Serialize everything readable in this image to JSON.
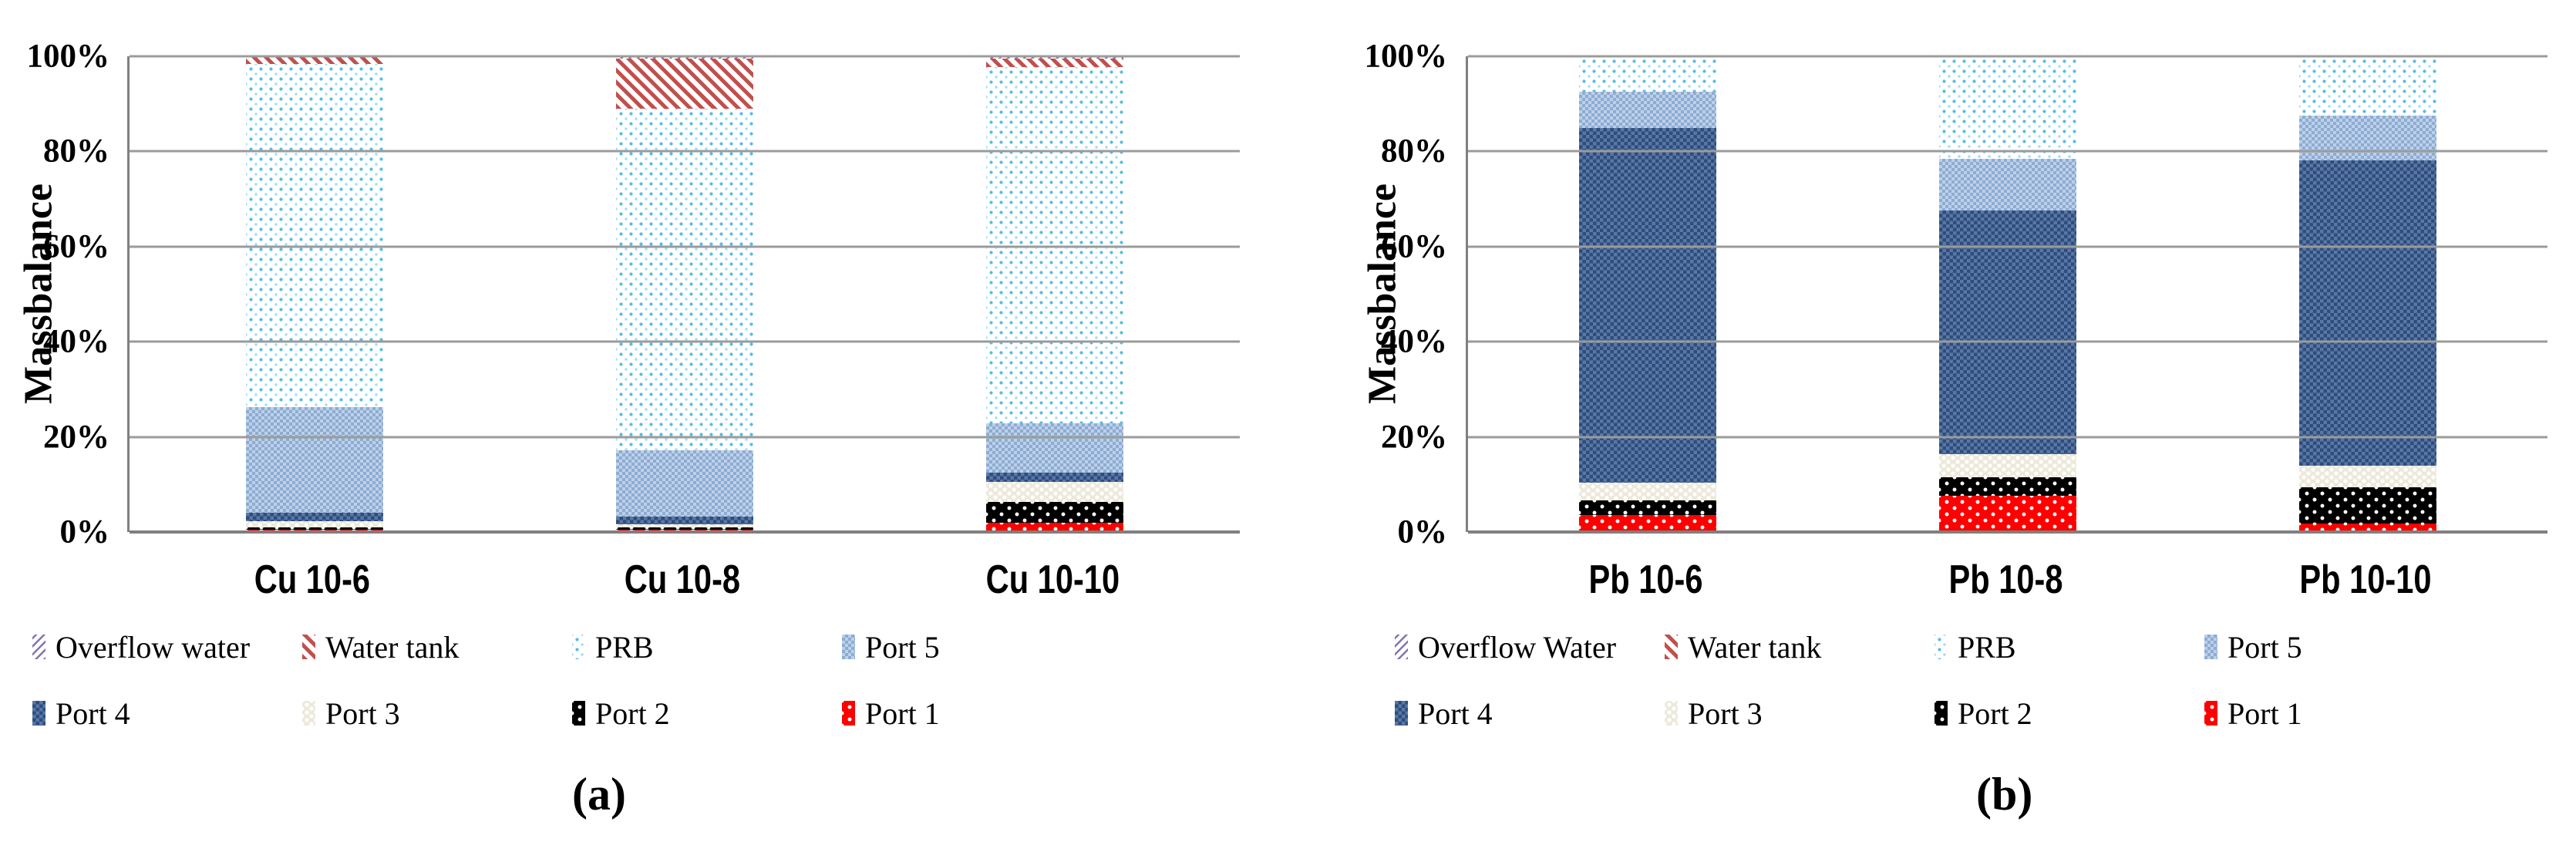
{
  "figure_type": "two-panel 100% stacked bar chart",
  "panels": [
    {
      "caption": "(a)",
      "ylabel": "Massbalance",
      "legend_rows": [
        [
          "Overflow water",
          "Water tank",
          "PRB",
          "Port 5"
        ],
        [
          "Port 4",
          "Port 3",
          "Port 2",
          "Port 1"
        ]
      ]
    },
    {
      "caption": "(b)",
      "ylabel": "Massbalance",
      "legend_rows": [
        [
          "Overflow Water",
          "Water tank",
          "PRB",
          "Port 5"
        ],
        [
          "Port 4",
          "Port 3",
          "Port 2",
          "Port 1"
        ]
      ]
    }
  ],
  "chart_data": [
    {
      "type": "bar",
      "stacked": true,
      "units": "percent",
      "title": "(a)",
      "ylabel": "Massbalance",
      "ylim": [
        0,
        100
      ],
      "ytick_labels": [
        "100%",
        "80%",
        "60%",
        "40%",
        "20%",
        "0%"
      ],
      "grid": true,
      "legend_position": "bottom",
      "categories": [
        "Cu 10-6",
        "Cu 10-8",
        "Cu 10-10"
      ],
      "series": [
        {
          "name": "Port 1",
          "values": [
            0.5,
            0.5,
            1.9
          ]
        },
        {
          "name": "Port 2",
          "values": [
            0.5,
            0.5,
            4.4
          ]
        },
        {
          "name": "Port 3",
          "values": [
            1.3,
            0.7,
            4.3
          ]
        },
        {
          "name": "Port 4",
          "values": [
            1.7,
            1.6,
            1.9
          ]
        },
        {
          "name": "Port 5",
          "values": [
            22.3,
            13.9,
            10.4
          ]
        },
        {
          "name": "PRB",
          "values": [
            72.1,
            71.8,
            74.8
          ]
        },
        {
          "name": "Water tank",
          "values": [
            1.6,
            10.5,
            1.8
          ]
        },
        {
          "name": "Overflow water",
          "values": [
            0.0,
            0.5,
            0.5
          ]
        }
      ]
    },
    {
      "type": "bar",
      "stacked": true,
      "units": "percent",
      "title": "(b)",
      "ylabel": "Massbalance",
      "ylim": [
        0,
        100
      ],
      "ytick_labels": [
        "100%",
        "80%",
        "60%",
        "40%",
        "20%",
        "0%"
      ],
      "grid": true,
      "legend_position": "bottom",
      "categories": [
        "Pb 10-6",
        "Pb 10-8",
        "Pb 10-10"
      ],
      "series": [
        {
          "name": "Port 1",
          "values": [
            3.6,
            7.6,
            1.8
          ]
        },
        {
          "name": "Port 2",
          "values": [
            3.1,
            3.9,
            7.6
          ]
        },
        {
          "name": "Port 3",
          "values": [
            3.7,
            4.9,
            4.6
          ]
        },
        {
          "name": "Port 4",
          "values": [
            74.5,
            51.2,
            64.2
          ]
        },
        {
          "name": "Port 5",
          "values": [
            7.6,
            10.9,
            9.4
          ]
        },
        {
          "name": "PRB",
          "values": [
            7.5,
            21.5,
            12.4
          ]
        },
        {
          "name": "Water tank",
          "values": [
            0.0,
            0.0,
            0.0
          ]
        },
        {
          "name": "Overflow Water",
          "values": [
            0.0,
            0.0,
            0.0
          ]
        }
      ]
    }
  ],
  "colors": {
    "port-1": "#fe0000",
    "port-2": "#000000",
    "port-3": "#ece9da",
    "port-4": "#2e4d7c",
    "port-5": "#94b2d6",
    "prb-dot": "#56bde4",
    "water-tank-stripe": "#c0504d",
    "overflow-water-stripe": "#8673b1",
    "gridline": "#9b9b9b",
    "axis": "#808080",
    "text": "#000000",
    "background": "#ffffff"
  }
}
